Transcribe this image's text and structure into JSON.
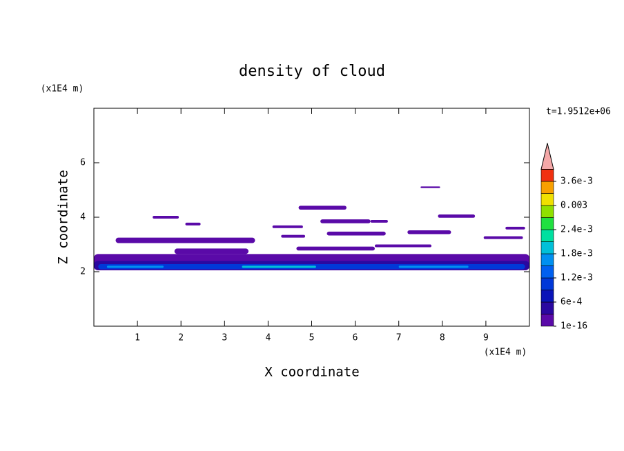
{
  "chart_data": {
    "type": "contour",
    "title": "density of cloud",
    "xlabel": "X coordinate",
    "ylabel": "Z coordinate",
    "x_unit": "(x1E4 m)",
    "y_unit": "(x1E4 m)",
    "annotation": "t=1.9512e+06",
    "xlim": [
      0,
      10
    ],
    "ylim": [
      0,
      8
    ],
    "xticks": [
      1,
      2,
      3,
      4,
      5,
      6,
      7,
      8,
      9
    ],
    "yticks": [
      2,
      4,
      6
    ],
    "colorbar": {
      "levels": [
        1e-16,
        0.0003,
        0.0006,
        0.0009,
        0.0012,
        0.0015,
        0.0018,
        0.0021,
        0.0024,
        0.0027,
        0.003,
        0.0033,
        0.0036
      ],
      "colors": [
        "#5a0aa8",
        "#2a08a0",
        "#0a14b8",
        "#0038d8",
        "#0060f0",
        "#0090f0",
        "#00c0d8",
        "#00e0a0",
        "#20e040",
        "#90e000",
        "#f0e000",
        "#f8a000",
        "#f03010"
      ],
      "extend_color": "#f4a8a8",
      "ticks": [
        {
          "value": 1e-16,
          "label": "1e-16"
        },
        {
          "value": 0.0006,
          "label": "6e-4"
        },
        {
          "value": 0.0012,
          "label": "1.2e-3"
        },
        {
          "value": 0.0018,
          "label": "1.8e-3"
        },
        {
          "value": 0.0024,
          "label": "2.4e-3"
        },
        0.003,
        {
          "value": 0.0036,
          "label": "3.6e-3"
        }
      ]
    },
    "regions": [
      {
        "x": [
          0,
          10
        ],
        "y": [
          2.05,
          2.65
        ],
        "value": 1e-16
      },
      {
        "x": [
          0,
          10
        ],
        "y": [
          2.07,
          2.4
        ],
        "value": 0.0003
      },
      {
        "x": [
          0.1,
          9.9
        ],
        "y": [
          2.09,
          2.28
        ],
        "value": 0.0009
      },
      {
        "x": [
          0.3,
          1.6
        ],
        "y": [
          2.14,
          2.22
        ],
        "value": 0.0015
      },
      {
        "x": [
          3.4,
          5.1
        ],
        "y": [
          2.14,
          2.22
        ],
        "value": 0.0018
      },
      {
        "x": [
          7,
          8.6
        ],
        "y": [
          2.14,
          2.22
        ],
        "value": 0.0015
      },
      {
        "x": [
          0.5,
          3.7
        ],
        "y": [
          3.05,
          3.25
        ],
        "value": 1e-16
      },
      {
        "x": [
          1.85,
          3.55
        ],
        "y": [
          2.65,
          2.85
        ],
        "value": 1e-16
      },
      {
        "x": [
          1.35,
          1.95
        ],
        "y": [
          3.95,
          4.05
        ],
        "value": 1e-16
      },
      {
        "x": [
          2.1,
          2.45
        ],
        "y": [
          3.7,
          3.8
        ],
        "value": 1e-16
      },
      {
        "x": [
          4.7,
          5.8
        ],
        "y": [
          4.28,
          4.42
        ],
        "value": 1e-16
      },
      {
        "x": [
          5.2,
          6.35
        ],
        "y": [
          3.78,
          3.92
        ],
        "value": 1e-16
      },
      {
        "x": [
          6.35,
          6.75
        ],
        "y": [
          3.8,
          3.9
        ],
        "value": 1e-16
      },
      {
        "x": [
          7.5,
          7.95
        ],
        "y": [
          5.07,
          5.13
        ],
        "value": 1e-16
      },
      {
        "x": [
          7.9,
          8.75
        ],
        "y": [
          3.98,
          4.1
        ],
        "value": 1e-16
      },
      {
        "x": [
          7.2,
          8.2
        ],
        "y": [
          3.38,
          3.52
        ],
        "value": 1e-16
      },
      {
        "x": [
          4.1,
          4.8
        ],
        "y": [
          3.6,
          3.7
        ],
        "value": 1e-16
      },
      {
        "x": [
          4.3,
          4.85
        ],
        "y": [
          3.25,
          3.35
        ],
        "value": 1e-16
      },
      {
        "x": [
          9.45,
          9.9
        ],
        "y": [
          3.55,
          3.65
        ],
        "value": 1e-16
      },
      {
        "x": [
          8.95,
          9.85
        ],
        "y": [
          3.2,
          3.3
        ],
        "value": 1e-16
      },
      {
        "x": [
          5.35,
          6.7
        ],
        "y": [
          3.33,
          3.47
        ],
        "value": 1e-16
      },
      {
        "x": [
          4.65,
          6.45
        ],
        "y": [
          2.78,
          2.92
        ],
        "value": 1e-16
      },
      {
        "x": [
          6.45,
          7.75
        ],
        "y": [
          2.9,
          3.0
        ],
        "value": 1e-16
      }
    ]
  }
}
